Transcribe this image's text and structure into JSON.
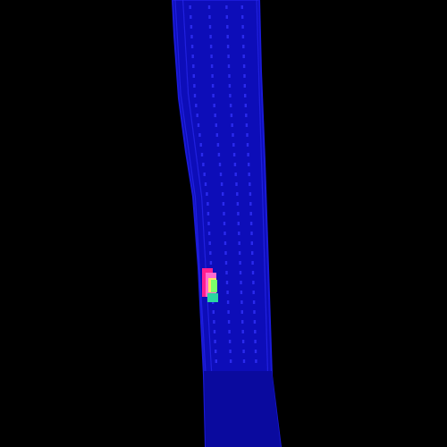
{
  "image": {
    "kind": "false-color visualization",
    "background_color": "#000000",
    "colors": {
      "band_base": "#0a0a9e",
      "band_body": "#0d0db8",
      "band_edge": "#1a1ad8",
      "band_line": "#2a2af0",
      "band_dots": "#3434ff",
      "hotspot_outer": "#ff1f8f",
      "hotspot_mid": "#ff6ad0",
      "hotspot_core": "#ffe066",
      "hotspot_green": "#7cff6a",
      "hotspot_teal": "#2ad6a0"
    }
  }
}
